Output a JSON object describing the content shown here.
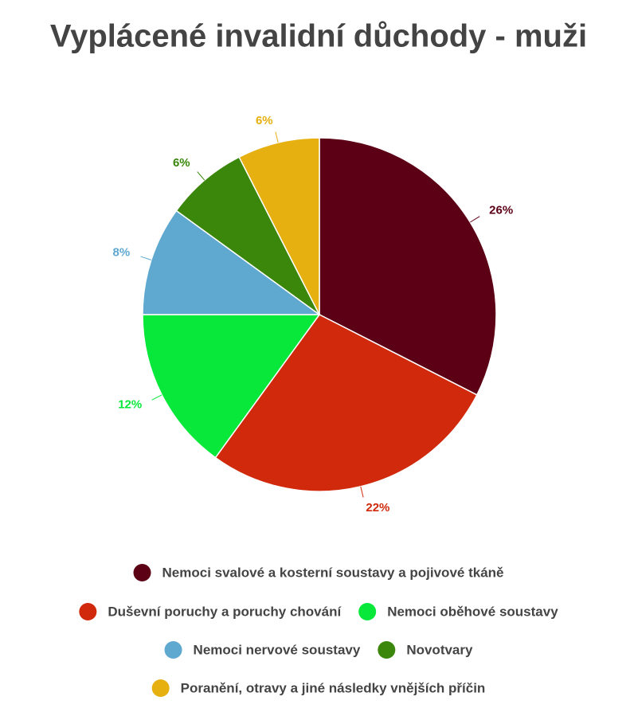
{
  "chart_data": {
    "type": "pie",
    "title": "Vyplácené invalidní důchody - muži",
    "categories": [
      "Nemoci svalové a kosterní soustavy a pojivové tkáně",
      "Duševní poruchy a poruchy chování",
      "Nemoci oběhové soustavy",
      "Nemoci nervové soustavy",
      "Novotvary",
      "Poranění, otravy a jiné následky vnějších příčin"
    ],
    "values": [
      26,
      22,
      12,
      8,
      6,
      6
    ],
    "value_labels": [
      "26%",
      "22%",
      "12%",
      "8%",
      "6%",
      "6%"
    ],
    "colors": [
      "#5c0016",
      "#d0290c",
      "#07e83a",
      "#5fa8d0",
      "#3a870c",
      "#e6b010"
    ],
    "legend": "bottom"
  }
}
